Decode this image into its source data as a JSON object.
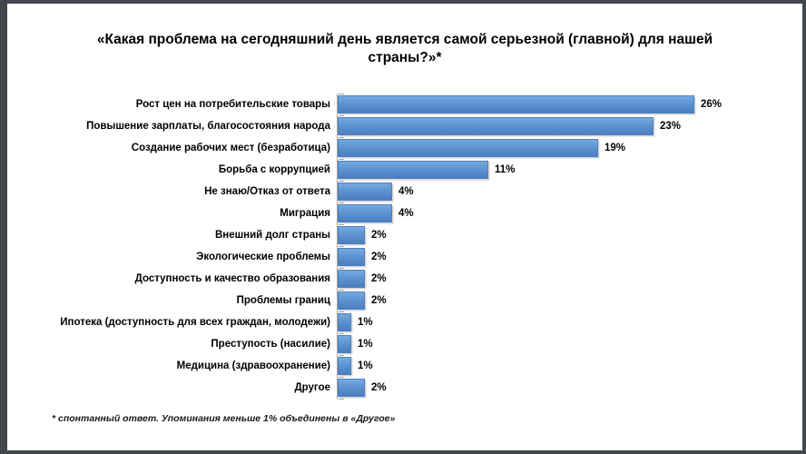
{
  "title": "«Какая проблема на сегодняшний день является самой серьезной (главной) для нашей страны?»*",
  "footnote": "* спонтанный ответ. Упоминания меньше 1% объединены в «Другое»",
  "colors": {
    "frame": "#43474d",
    "background": "#ffffff",
    "bar_top": "#74aae1",
    "bar_bottom": "#4a7ec0",
    "bar_border": "#4f81bd",
    "axis": "#a6a6a6",
    "text": "#000000"
  },
  "chart_data": {
    "type": "bar",
    "orientation": "horizontal",
    "title": "«Какая проблема на сегодняшний день является самой серьезной (главной) для нашей страны?»*",
    "xlabel": "",
    "ylabel": "",
    "xlim": [
      0,
      26
    ],
    "grid": false,
    "legend": false,
    "value_label_format": "percent",
    "categories": [
      "Рост цен на потребительские товары",
      "Повышение зарплаты, благосостояния народа",
      "Создание рабочих мест (безработица)",
      "Борьба с коррупцией",
      "Не знаю/Отказ от ответа",
      "Миграция",
      "Внешний долг страны",
      "Экологические проблемы",
      "Доступность и качество образования",
      "Проблемы границ",
      "Ипотека (доступность для всех граждан, молодежи)",
      "Преступость (насилие)",
      "Медицина (здравоохранение)",
      "Другое"
    ],
    "values": [
      26,
      23,
      19,
      11,
      4,
      4,
      2,
      2,
      2,
      2,
      1,
      1,
      1,
      2
    ],
    "value_labels": [
      "26%",
      "23%",
      "19%",
      "11%",
      "4%",
      "4%",
      "2%",
      "2%",
      "2%",
      "2%",
      "1%",
      "1%",
      "1%",
      "2%"
    ]
  }
}
